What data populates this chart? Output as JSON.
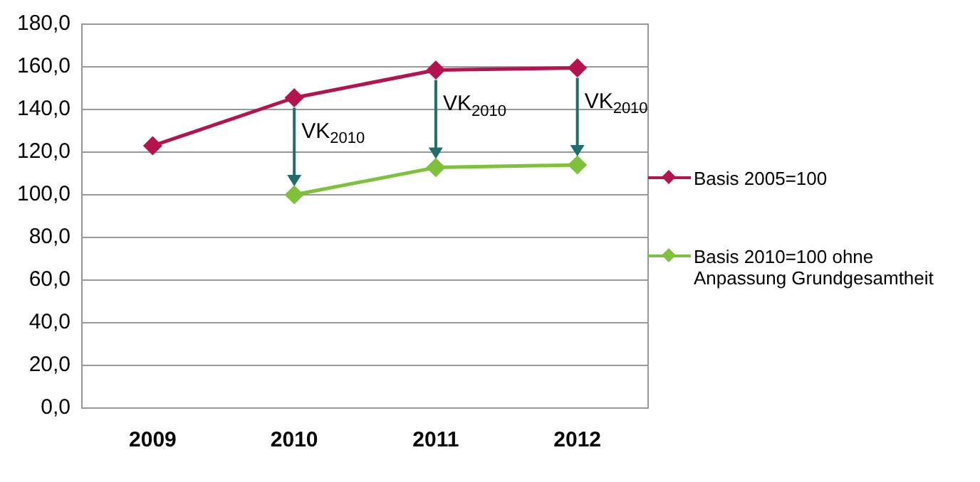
{
  "chart_data": {
    "type": "line",
    "categories": [
      "2009",
      "2010",
      "2011",
      "2012"
    ],
    "series": [
      {
        "name": "Basis 2005=100",
        "color": "#b5134f",
        "values": [
          123,
          145.5,
          158.5,
          159.5
        ]
      },
      {
        "name": "Basis 2010=100 ohne Anpassung Grundgesamtheit",
        "color": "#7ec13a",
        "values": [
          null,
          100,
          112.8,
          114
        ]
      }
    ],
    "ylim": [
      0,
      180
    ],
    "yticks": [
      {
        "value": 0,
        "label": "0,0"
      },
      {
        "value": 20,
        "label": "20,0"
      },
      {
        "value": 40,
        "label": "40,0"
      },
      {
        "value": 60,
        "label": "60,0"
      },
      {
        "value": 80,
        "label": "80,0"
      },
      {
        "value": 100,
        "label": "100,0"
      },
      {
        "value": 120,
        "label": "120,0"
      },
      {
        "value": 140,
        "label": "140,0"
      },
      {
        "value": 160,
        "label": "160,0"
      },
      {
        "value": 180,
        "label": "180,0"
      }
    ],
    "grid": "y",
    "legend": "right",
    "marker": "diamond",
    "line_style": "solid",
    "annotations": [
      {
        "text": "VK$_{2010}$",
        "x": "2010",
        "y": 100
      },
      {
        "text": "VK$_{2010}$",
        "x": "2011",
        "y": 112.8
      },
      {
        "text": "VK$_{2010}$",
        "x": "2012",
        "y": 114
      }
    ]
  }
}
